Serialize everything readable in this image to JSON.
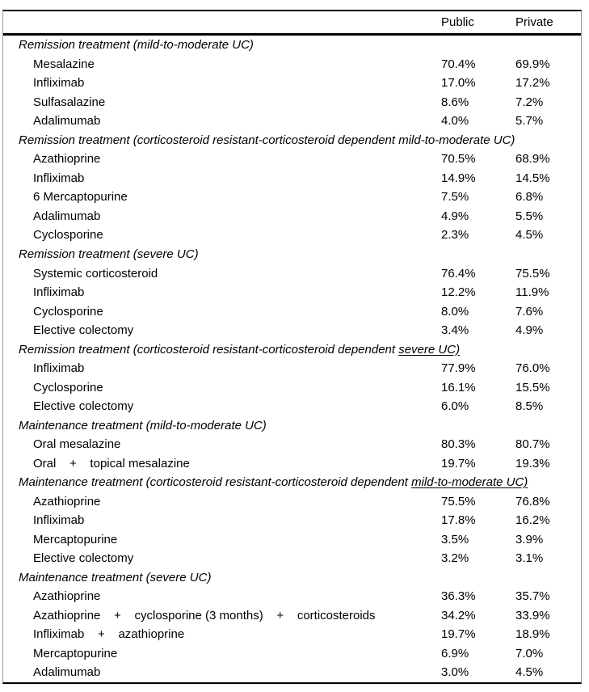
{
  "page": {
    "background": "#ffffff",
    "text_color": "#000000",
    "rule_color": "#000000"
  },
  "table": {
    "columns": [
      "Public",
      "Private"
    ],
    "sections": [
      {
        "header_prefix": "Remission treatment (mild-to-moderate UC)",
        "header_underlined": "",
        "rows": [
          {
            "label": "Mesalazine",
            "public": "70.4%",
            "private": "69.9%"
          },
          {
            "label": "Infliximab",
            "public": "17.0%",
            "private": "17.2%"
          },
          {
            "label": "Sulfasalazine",
            "public": "8.6%",
            "private": "7.2%"
          },
          {
            "label": "Adalimumab",
            "public": "4.0%",
            "private": "5.7%"
          }
        ]
      },
      {
        "header_prefix": "Remission treatment (corticosteroid resistant-corticosteroid dependent mild-to-moderate UC)",
        "header_underlined": "",
        "rows": [
          {
            "label": "Azathioprine",
            "public": "70.5%",
            "private": "68.9%"
          },
          {
            "label": "Infliximab",
            "public": "14.9%",
            "private": "14.5%"
          },
          {
            "label": "6 Mercaptopurine",
            "public": "7.5%",
            "private": "6.8%"
          },
          {
            "label": "Adalimumab",
            "public": "4.9%",
            "private": "5.5%"
          },
          {
            "label": "Cyclosporine",
            "public": "2.3%",
            "private": "4.5%"
          }
        ]
      },
      {
        "header_prefix": "Remission treatment (severe UC)",
        "header_underlined": "",
        "rows": [
          {
            "label": "Systemic corticosteroid",
            "public": "76.4%",
            "private": "75.5%"
          },
          {
            "label": "Infliximab",
            "public": "12.2%",
            "private": "11.9%"
          },
          {
            "label": "Cyclosporine",
            "public": "8.0%",
            "private": "7.6%"
          },
          {
            "label": "Elective colectomy",
            "public": "3.4%",
            "private": "4.9%"
          }
        ]
      },
      {
        "header_prefix": "Remission treatment (corticosteroid resistant-corticosteroid dependent ",
        "header_underlined": "severe UC)",
        "rows": [
          {
            "label": "Infliximab",
            "public": "77.9%",
            "private": "76.0%"
          },
          {
            "label": "Cyclosporine",
            "public": "16.1%",
            "private": "15.5%"
          },
          {
            "label": "Elective colectomy",
            "public": "6.0%",
            "private": "8.5%"
          }
        ]
      },
      {
        "header_prefix": "Maintenance treatment (mild-to-moderate UC)",
        "header_underlined": "",
        "rows": [
          {
            "label": "Oral mesalazine",
            "public": "80.3%",
            "private": "80.7%"
          },
          {
            "label": "Oral    +    topical mesalazine",
            "public": "19.7%",
            "private": "19.3%"
          }
        ]
      },
      {
        "header_prefix": "Maintenance treatment (corticosteroid resistant-corticosteroid dependent ",
        "header_underlined": "mild-to-moderate UC)",
        "rows": [
          {
            "label": "Azathioprine",
            "public": "75.5%",
            "private": "76.8%"
          },
          {
            "label": "Infliximab",
            "public": "17.8%",
            "private": "16.2%"
          },
          {
            "label": "Mercaptopurine",
            "public": "3.5%",
            "private": "3.9%"
          },
          {
            "label": "Elective colectomy",
            "public": "3.2%",
            "private": "3.1%"
          }
        ]
      },
      {
        "header_prefix": "Maintenance treatment (severe UC)",
        "header_underlined": "",
        "rows": [
          {
            "label": "Azathioprine",
            "public": "36.3%",
            "private": "35.7%"
          },
          {
            "label": "Azathioprine    +    cyclosporine (3 months)    +    corticosteroids",
            "public": "34.2%",
            "private": "33.9%"
          },
          {
            "label": "Infliximab    +    azathioprine",
            "public": "19.7%",
            "private": "18.9%"
          },
          {
            "label": "Mercaptopurine",
            "public": "6.9%",
            "private": "7.0%"
          },
          {
            "label": "Adalimumab",
            "public": "3.0%",
            "private": "4.5%"
          }
        ]
      }
    ]
  }
}
